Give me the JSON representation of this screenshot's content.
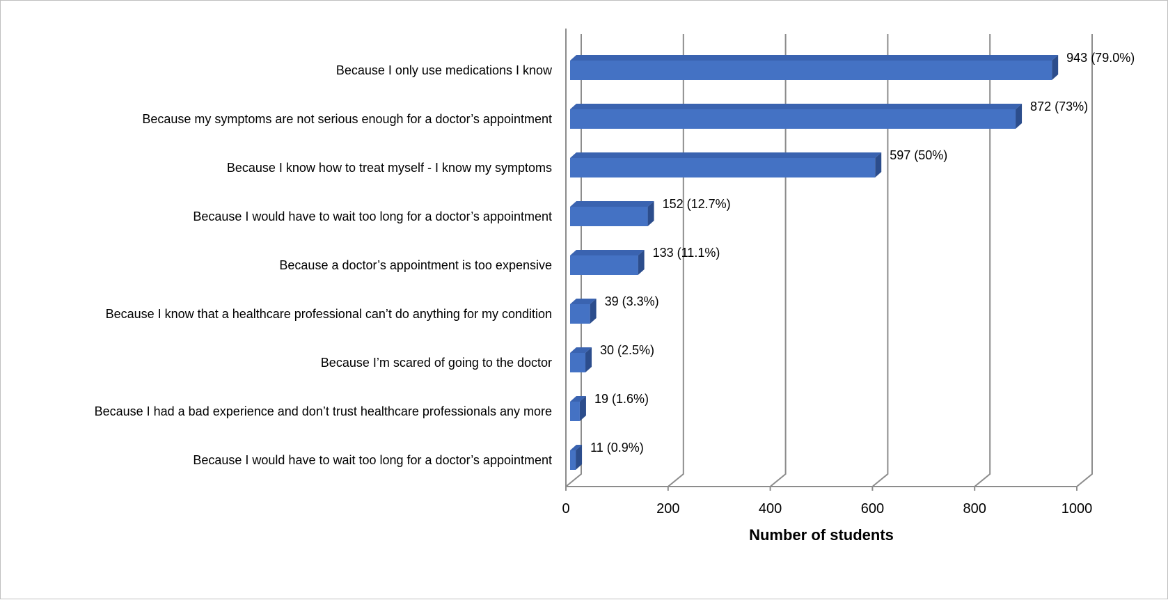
{
  "chart_data": {
    "type": "bar",
    "orientation": "horizontal",
    "style": "3d",
    "categories": [
      "Because I only use medications I know",
      "Because my symptoms are not serious enough for a doctor’s appointment",
      "Because I know how to treat myself - I know my symptoms",
      "Because I would have to wait too long for a doctor’s appointment",
      "Because a doctor’s appointment is too expensive",
      "Because I know that a healthcare professional can’t do anything for my condition",
      "Because I’m scared of going to the doctor",
      "Because I had a bad experience and don’t trust healthcare professionals any more",
      "Because I would have to wait too long for a doctor’s appointment"
    ],
    "values": [
      943,
      872,
      597,
      152,
      133,
      39,
      30,
      19,
      11
    ],
    "data_labels": [
      "943 (79.0%)",
      "872 (73%)",
      "597 (50%)",
      "152 (12.7%)",
      "133 (11.1%)",
      "39 (3.3%)",
      "30 (2.5%)",
      "19 (1.6%)",
      "11 (0.9%)"
    ],
    "xlabel": "Number of students",
    "ylabel": "",
    "title": "",
    "xlim": [
      0,
      1000
    ],
    "x_ticks": [
      0,
      200,
      400,
      600,
      800,
      1000
    ],
    "x_tick_labels": [
      "0",
      "200",
      "400",
      "600",
      "800",
      "1000"
    ],
    "grid": true,
    "legend": false,
    "colors": {
      "bar_front": "#4472c4",
      "bar_top": "#3a63b0",
      "bar_side": "#2c4d8c",
      "grid": "#8c8c8c",
      "axis": "#8c8c8c"
    }
  }
}
